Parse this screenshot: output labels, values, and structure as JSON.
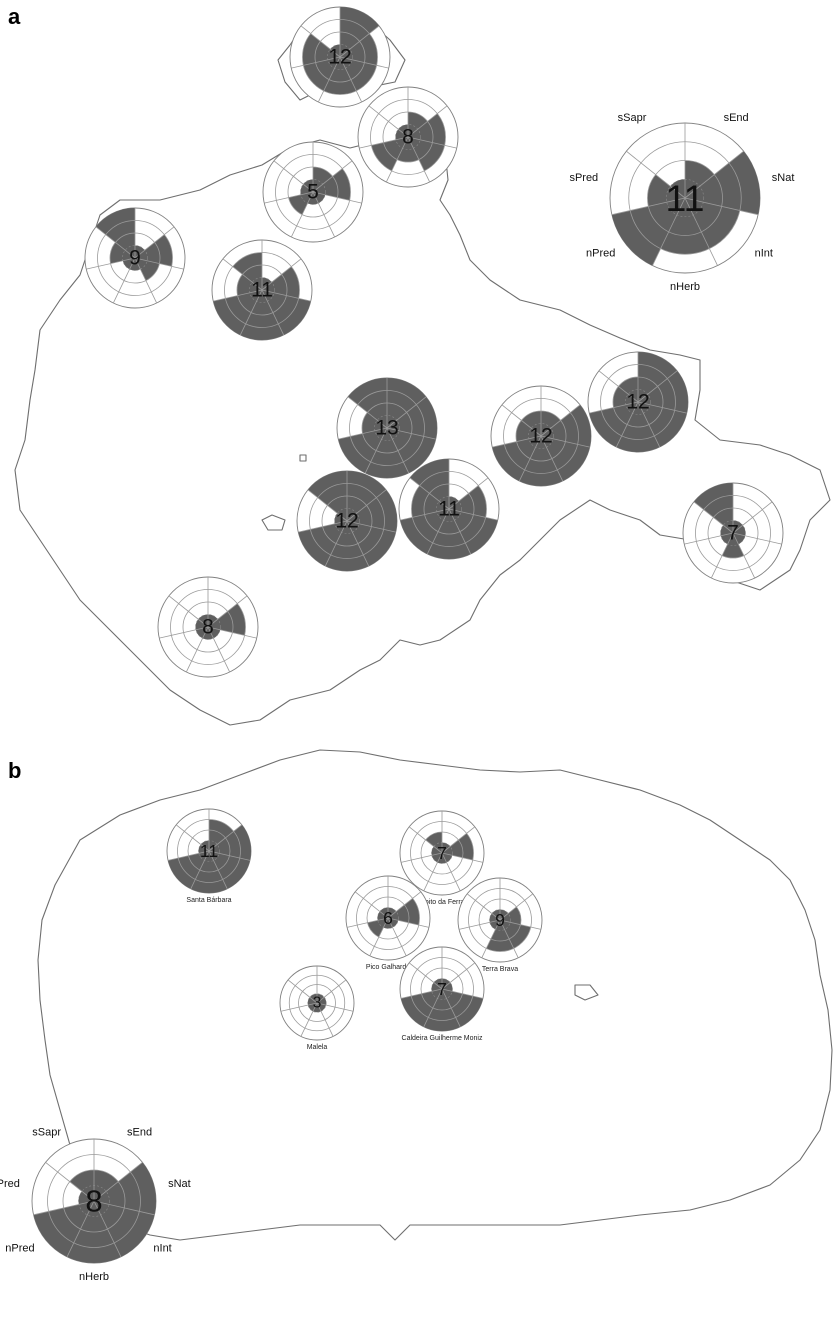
{
  "figure": {
    "panels": [
      {
        "letter": "a",
        "legend": {
          "value": "11",
          "labels": [
            "sEnd",
            "sNat",
            "nInt",
            "nHerb",
            "nPred",
            "sPred",
            "sSapr"
          ],
          "levels": [
            2,
            4,
            3,
            3,
            4,
            2,
            1
          ]
        },
        "sites": [
          {
            "value": "12",
            "levels": [
              4,
              3,
              3,
              3,
              3,
              3,
              1
            ]
          },
          {
            "value": "8",
            "levels": [
              2,
              3,
              3,
              2,
              3,
              1,
              1
            ]
          },
          {
            "value": "5",
            "levels": [
              2,
              3,
              1,
              1,
              2,
              1,
              1
            ]
          },
          {
            "value": "9",
            "levels": [
              1,
              3,
              2,
              1,
              1,
              2,
              4
            ]
          },
          {
            "value": "11",
            "levels": [
              1,
              3,
              4,
              4,
              4,
              2,
              3
            ]
          },
          {
            "value": "13",
            "levels": [
              4,
              4,
              4,
              4,
              4,
              2,
              4
            ]
          },
          {
            "value": "12",
            "levels": [
              2,
              4,
              4,
              4,
              4,
              2,
              2
            ]
          },
          {
            "value": "12",
            "levels": [
              4,
              4,
              4,
              4,
              4,
              2,
              2
            ]
          },
          {
            "value": "12",
            "levels": [
              4,
              4,
              4,
              4,
              4,
              1,
              4
            ]
          },
          {
            "value": "11",
            "levels": [
              1,
              3,
              4,
              4,
              4,
              3,
              4
            ]
          },
          {
            "value": "7",
            "levels": [
              1,
              1,
              1,
              2,
              1,
              1,
              4
            ]
          },
          {
            "value": "8",
            "levels": [
              1,
              3,
              1,
              1,
              1,
              1,
              1
            ]
          }
        ]
      },
      {
        "letter": "b",
        "legend": {
          "value": "8",
          "labels": [
            "sEnd",
            "sNat",
            "nInt",
            "nHerb",
            "nPred",
            "sPred",
            "sSapr"
          ],
          "levels": [
            2,
            4,
            4,
            4,
            4,
            1,
            2
          ]
        },
        "sites": [
          {
            "value": "11",
            "name": "Santa Bárbara",
            "levels": [
              3,
              4,
              4,
              4,
              4,
              1,
              1
            ]
          },
          {
            "value": "7",
            "name": "Biscoito da Ferraria",
            "levels": [
              1,
              3,
              1,
              1,
              1,
              1,
              2
            ]
          },
          {
            "value": "6",
            "name": "Pico Galhardo",
            "levels": [
              1,
              3,
              1,
              1,
              2,
              1,
              1
            ]
          },
          {
            "value": "9",
            "name": "Terra Brava",
            "levels": [
              1,
              2,
              3,
              3,
              1,
              1,
              1
            ]
          },
          {
            "value": "3",
            "name": "Malela",
            "levels": [
              1,
              1,
              1,
              1,
              1,
              1,
              1
            ]
          },
          {
            "value": "7",
            "name": "Caldeira Guilherme Moniz",
            "levels": [
              1,
              1,
              4,
              4,
              4,
              1,
              1
            ]
          }
        ]
      }
    ]
  }
}
